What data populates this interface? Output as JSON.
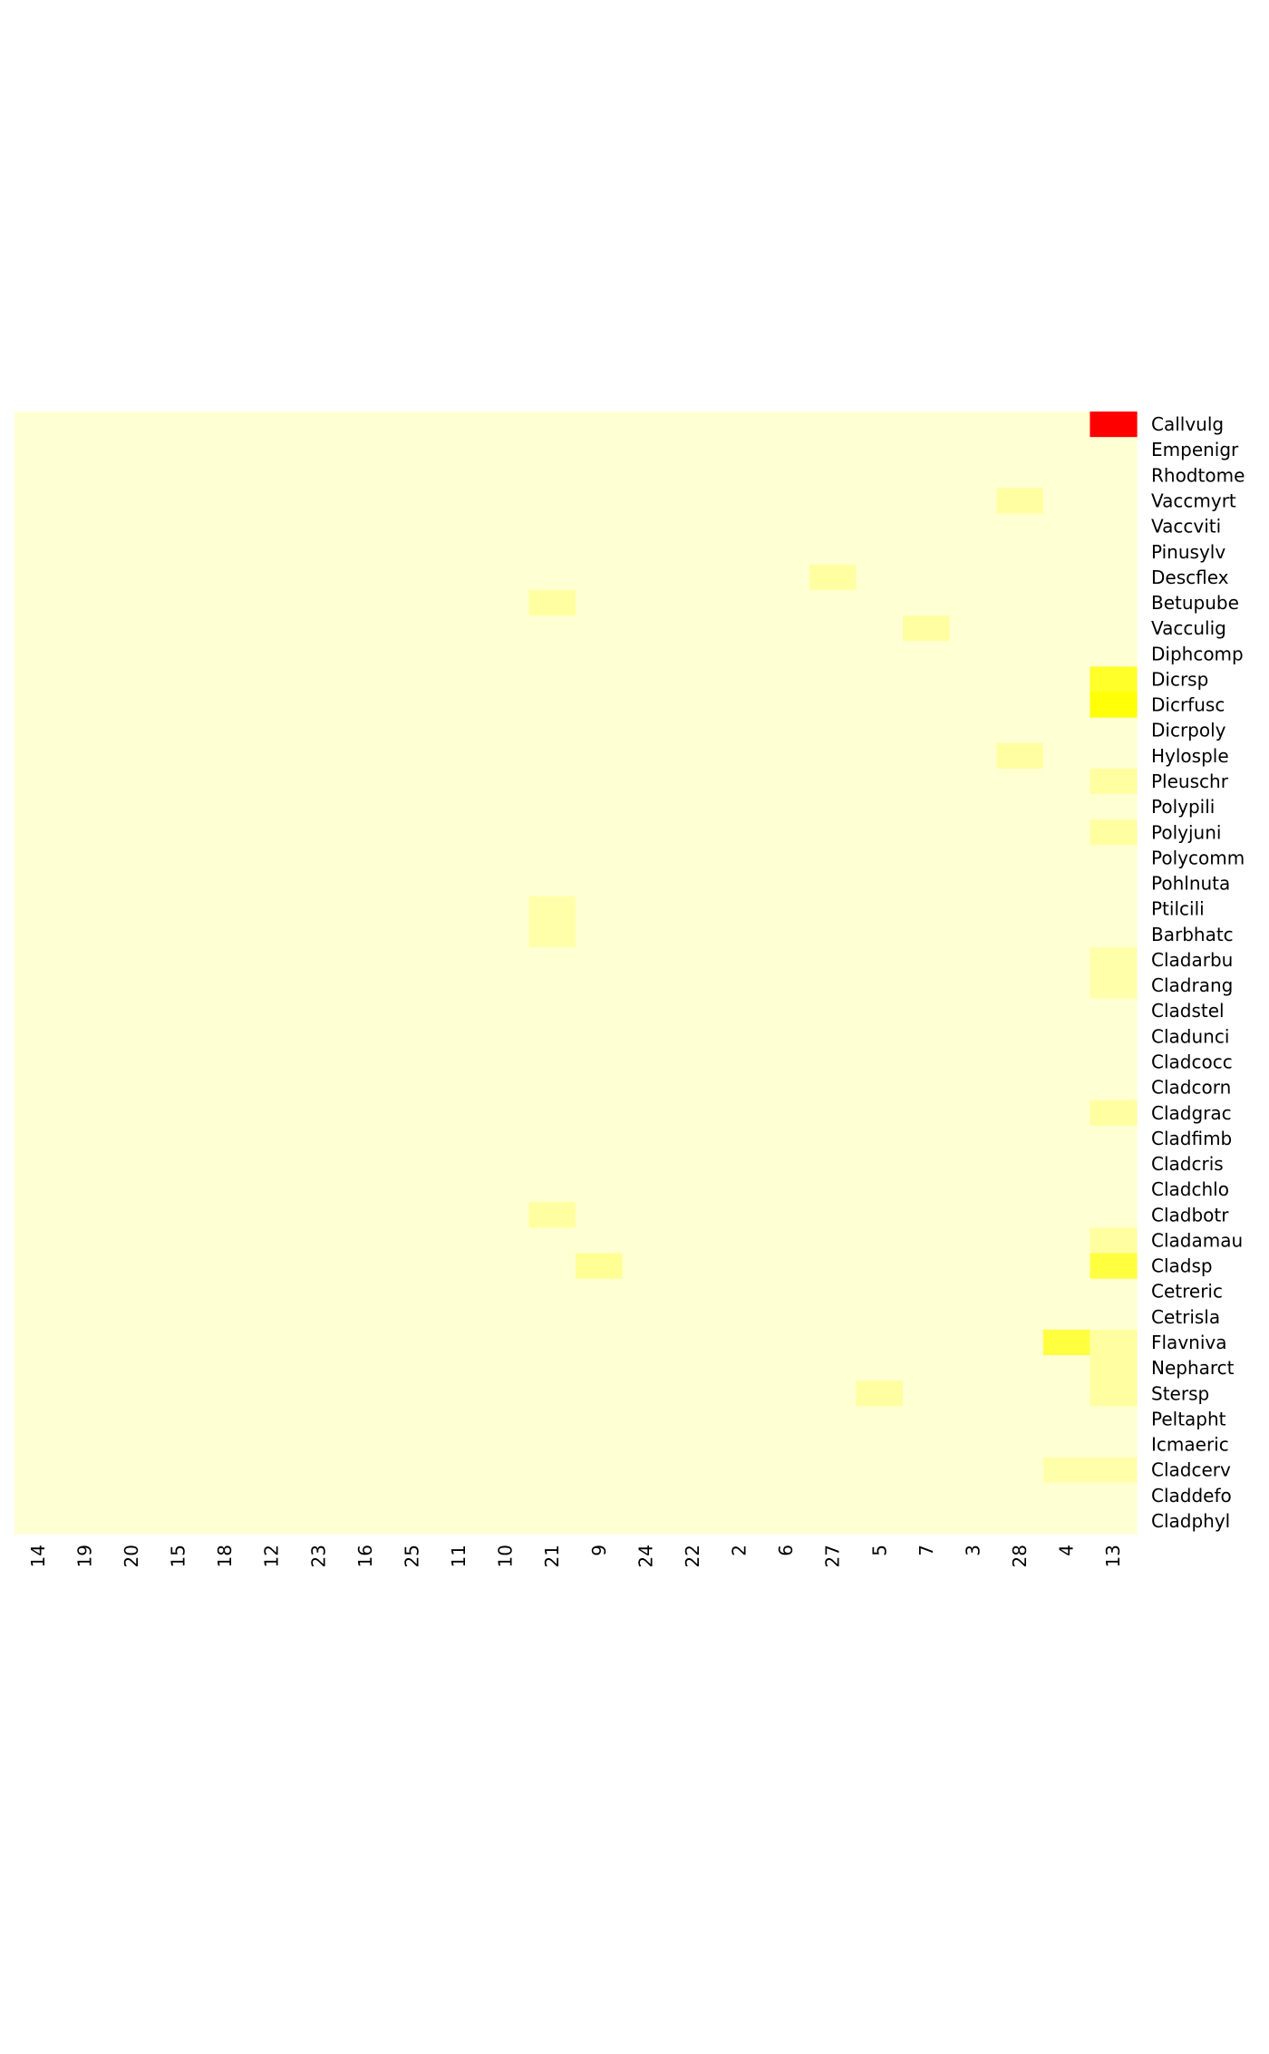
{
  "chart_data": {
    "type": "heatmap",
    "title": "",
    "xlabel": "",
    "ylabel": "",
    "columns": [
      "14",
      "19",
      "20",
      "15",
      "18",
      "12",
      "23",
      "16",
      "25",
      "11",
      "10",
      "21",
      "9",
      "24",
      "22",
      "2",
      "6",
      "27",
      "5",
      "7",
      "3",
      "28",
      "4",
      "13"
    ],
    "rows": [
      "Callvulg",
      "Empenigr",
      "Rhodtome",
      "Vaccmyrt",
      "Vaccviti",
      "Pinusylv",
      "Descflex",
      "Betupube",
      "Vacculig",
      "Diphcomp",
      "Dicrsp",
      "Dicrfusc",
      "Dicrpoly",
      "Hylosple",
      "Pleuschr",
      "Polypili",
      "Polyjuni",
      "Polycomm",
      "Pohlnuta",
      "Ptilcili",
      "Barbhatc",
      "Cladarbu",
      "Cladrang",
      "Cladstel",
      "Cladunci",
      "Cladcocc",
      "Cladcorn",
      "Cladgrac",
      "Cladfimb",
      "Cladcris",
      "Cladchlo",
      "Cladbotr",
      "Cladamau",
      "Cladsp",
      "Cetreric",
      "Cetrisla",
      "Flavniva",
      "Nepharct",
      "Stersp",
      "Peltapht",
      "Icmaeric",
      "Cladcerv",
      "Claddefo",
      "Cladphyl"
    ],
    "color_scale": {
      "low": "#FFFFD4",
      "mid": "#FFFF00",
      "high": "#FF0000"
    },
    "value_range": [
      0,
      1
    ],
    "nonzero_cells": [
      {
        "row": "Callvulg",
        "col": "13",
        "value": 1.0
      },
      {
        "row": "Vaccmyrt",
        "col": "28",
        "value": 0.12
      },
      {
        "row": "Descflex",
        "col": "27",
        "value": 0.12
      },
      {
        "row": "Betupube",
        "col": "21",
        "value": 0.12
      },
      {
        "row": "Vacculig",
        "col": "7",
        "value": 0.12
      },
      {
        "row": "Dicrsp",
        "col": "13",
        "value": 0.4
      },
      {
        "row": "Dicrfusc",
        "col": "13",
        "value": 0.48
      },
      {
        "row": "Hylosple",
        "col": "28",
        "value": 0.12
      },
      {
        "row": "Pleuschr",
        "col": "13",
        "value": 0.12
      },
      {
        "row": "Polyjuni",
        "col": "13",
        "value": 0.12
      },
      {
        "row": "Ptilcili",
        "col": "21",
        "value": 0.1
      },
      {
        "row": "Barbhatc",
        "col": "21",
        "value": 0.1
      },
      {
        "row": "Cladarbu",
        "col": "13",
        "value": 0.1
      },
      {
        "row": "Cladrang",
        "col": "13",
        "value": 0.1
      },
      {
        "row": "Cladgrac",
        "col": "13",
        "value": 0.12
      },
      {
        "row": "Cladbotr",
        "col": "21",
        "value": 0.12
      },
      {
        "row": "Cladamau",
        "col": "13",
        "value": 0.12
      },
      {
        "row": "Cladsp",
        "col": "9",
        "value": 0.15
      },
      {
        "row": "Cladsp",
        "col": "13",
        "value": 0.35
      },
      {
        "row": "Flavniva",
        "col": "4",
        "value": 0.35
      },
      {
        "row": "Flavniva",
        "col": "13",
        "value": 0.12
      },
      {
        "row": "Nepharct",
        "col": "13",
        "value": 0.12
      },
      {
        "row": "Stersp",
        "col": "5",
        "value": 0.12
      },
      {
        "row": "Stersp",
        "col": "13",
        "value": 0.12
      },
      {
        "row": "Cladcerv",
        "col": "4",
        "value": 0.1
      },
      {
        "row": "Cladcerv",
        "col": "13",
        "value": 0.1
      }
    ]
  }
}
